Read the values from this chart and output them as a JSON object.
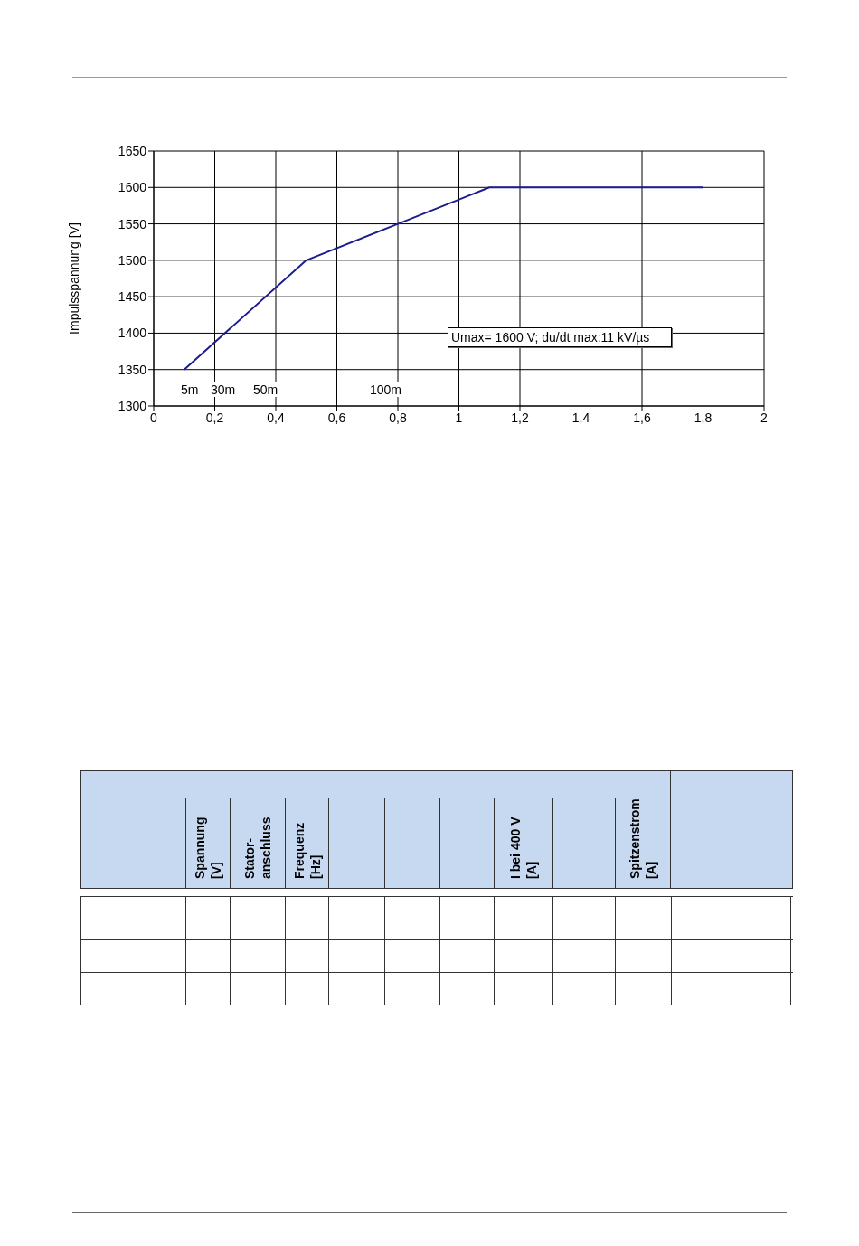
{
  "chart_data": [
    {
      "type": "line",
      "ylabel": "Impulsspannung [V]",
      "x": [
        0.1,
        0.5,
        0.8,
        1.1,
        1.8
      ],
      "series": [
        {
          "color": "#1c1c8f",
          "values": [
            1350,
            1500,
            1550,
            1600,
            1600
          ]
        }
      ],
      "xlim": [
        0,
        2
      ],
      "xticks": [
        0,
        {
          "value": 0.2,
          "label": "0,2"
        },
        {
          "value": 0.4,
          "label": "0,4"
        },
        {
          "value": 0.6,
          "label": "0,6"
        },
        {
          "value": 0.8,
          "label": "0,8"
        },
        1,
        {
          "value": 1.2,
          "label": "1,2"
        },
        {
          "value": 1.4,
          "label": "1,4"
        },
        {
          "value": 1.6,
          "label": "1,6"
        },
        {
          "value": 1.8,
          "label": "1,8"
        },
        2
      ],
      "ylim": [
        1300,
        1650
      ],
      "yticks": [
        1300,
        1350,
        1400,
        1450,
        1500,
        1550,
        1600,
        1650
      ],
      "grid": true,
      "marker": "none",
      "line_style": "solid",
      "annotations": [
        "5m",
        "30m",
        "50m",
        "100m",
        "Umax= 1600 V; du/dt max:11 kV/µs"
      ]
    },
    {
      "type": "other",
      "categories": [
        null,
        "Spannung [V]",
        "Stator-anschluss",
        "Frequenz [Hz]",
        null,
        null,
        null,
        "I bei 400 V [A]",
        null,
        "Spitzenstrom [A]"
      ]
    }
  ]
}
